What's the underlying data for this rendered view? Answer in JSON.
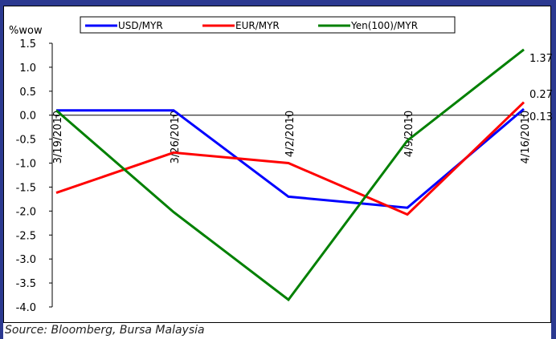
{
  "chart_data": {
    "type": "line",
    "ylabel": "%wow",
    "ylim": [
      -4.0,
      1.5
    ],
    "yticks": [
      "1.5",
      "1.0",
      "0.5",
      "0.0",
      "-0.5",
      "-1.0",
      "-1.5",
      "-2.0",
      "-2.5",
      "-3.0",
      "-3.5",
      "-4.0"
    ],
    "categories": [
      "3/19/2010",
      "3/26/2010",
      "4/2/2010",
      "4/9/2010",
      "4/16/2010"
    ],
    "series": [
      {
        "name": "USD/MYR",
        "color": "#0000ff",
        "values": [
          0.1,
          0.1,
          -1.7,
          -1.93,
          0.13
        ],
        "end_label": "0.13"
      },
      {
        "name": "EUR/MYR",
        "color": "#ff0000",
        "values": [
          -1.62,
          -0.78,
          -1.0,
          -2.07,
          0.27
        ],
        "end_label": "0.27"
      },
      {
        "name": "Yen(100)/MYR",
        "color": "#008000",
        "values": [
          0.1,
          -2.02,
          -3.85,
          -0.53,
          1.37
        ],
        "end_label": "1.37"
      }
    ],
    "legend": "top",
    "grid": false
  },
  "source_text": "Source: Bloomberg, Bursa Malaysia"
}
